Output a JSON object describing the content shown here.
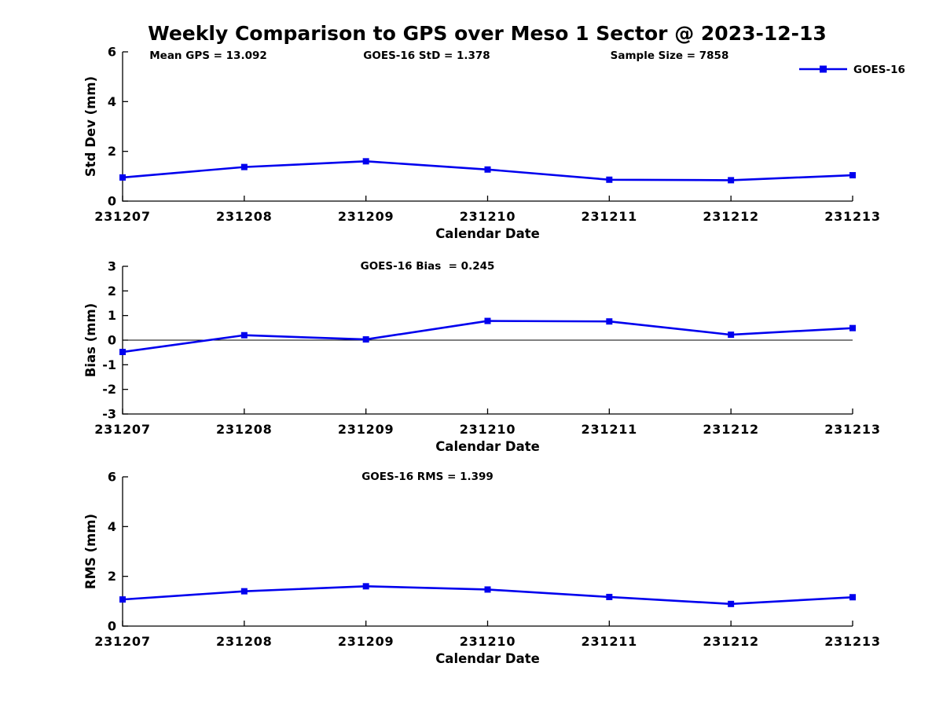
{
  "title": "Weekly Comparison to GPS over Meso 1 Sector @ 2023-12-13",
  "legend": {
    "label": "GOES-16"
  },
  "colors": {
    "line": "#0000EE",
    "axis": "#000000",
    "text": "#000000",
    "background": "#FFFFFF"
  },
  "categories": [
    "231207",
    "231208",
    "231209",
    "231210",
    "231211",
    "231212",
    "231213"
  ],
  "chart_data": [
    {
      "type": "line",
      "panel": "std-dev",
      "categories": [
        "231207",
        "231208",
        "231209",
        "231210",
        "231211",
        "231212",
        "231213"
      ],
      "series": [
        {
          "name": "GOES-16",
          "values": [
            0.95,
            1.37,
            1.6,
            1.27,
            0.86,
            0.84,
            1.04
          ]
        }
      ],
      "annotations": [
        "Mean GPS = 13.092",
        "GOES-16 StD = 1.378",
        "Sample Size = 7858"
      ],
      "xlabel": "Calendar Date",
      "ylabel": "Std Dev (mm)",
      "ylim": [
        0,
        6
      ],
      "yticks": [
        0,
        2,
        4,
        6
      ],
      "grid": false,
      "zero_line": false,
      "legend_position": "top-right"
    },
    {
      "type": "line",
      "panel": "bias",
      "categories": [
        "231207",
        "231208",
        "231209",
        "231210",
        "231211",
        "231212",
        "231213"
      ],
      "series": [
        {
          "name": "GOES-16",
          "values": [
            -0.48,
            0.2,
            0.03,
            0.78,
            0.76,
            0.22,
            0.49
          ]
        }
      ],
      "annotations": [
        "GOES-16 Bias  = 0.245"
      ],
      "xlabel": "Calendar Date",
      "ylabel": "Bias (mm)",
      "ylim": [
        -3,
        3
      ],
      "yticks": [
        3,
        2,
        1,
        0,
        -1,
        -2,
        -3
      ],
      "grid": false,
      "zero_line": true
    },
    {
      "type": "line",
      "panel": "rms",
      "categories": [
        "231207",
        "231208",
        "231209",
        "231210",
        "231211",
        "231212",
        "231213"
      ],
      "series": [
        {
          "name": "GOES-16",
          "values": [
            1.07,
            1.4,
            1.6,
            1.47,
            1.17,
            0.89,
            1.16
          ]
        }
      ],
      "annotations": [
        "GOES-16 RMS = 1.399"
      ],
      "xlabel": "Calendar Date",
      "ylabel": "RMS (mm)",
      "ylim": [
        0,
        6
      ],
      "yticks": [
        0,
        2,
        4,
        6
      ],
      "grid": false,
      "zero_line": false
    }
  ]
}
